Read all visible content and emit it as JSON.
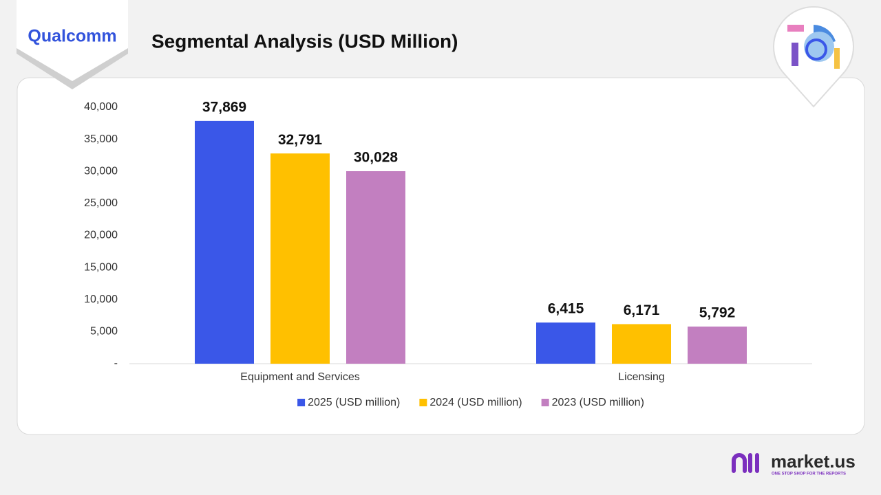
{
  "brand": {
    "company": "Qualcomm",
    "publisher": "market.us",
    "tagline": "ONE STOP SHOP FOR THE REPORTS"
  },
  "chart_data": {
    "type": "bar",
    "title": "Segmental Analysis (USD Million)",
    "categories": [
      "Equipment and Services",
      "Licensing"
    ],
    "series": [
      {
        "name": "2025 (USD million)",
        "color": "#3a57e8",
        "values": [
          37869,
          6415
        ],
        "value_labels": [
          "37,869",
          "6,415"
        ]
      },
      {
        "name": "2024 (USD million)",
        "color": "#ffc000",
        "values": [
          32791,
          6171
        ],
        "value_labels": [
          "32,791",
          "6,171"
        ]
      },
      {
        "name": "2023 (USD million)",
        "color": "#c27fc0",
        "values": [
          30028,
          5792
        ],
        "value_labels": [
          "30,028",
          "5,792"
        ]
      }
    ],
    "ylim": [
      0,
      40000
    ],
    "yticks": [
      {
        "value": 0,
        "label": "-"
      },
      {
        "value": 5000,
        "label": "5,000"
      },
      {
        "value": 10000,
        "label": "10,000"
      },
      {
        "value": 15000,
        "label": "15,000"
      },
      {
        "value": 20000,
        "label": "20,000"
      },
      {
        "value": 25000,
        "label": "25,000"
      },
      {
        "value": 30000,
        "label": "30,000"
      },
      {
        "value": 35000,
        "label": "35,000"
      },
      {
        "value": 40000,
        "label": "40,000"
      }
    ],
    "grid": false,
    "legend": "bottom"
  }
}
